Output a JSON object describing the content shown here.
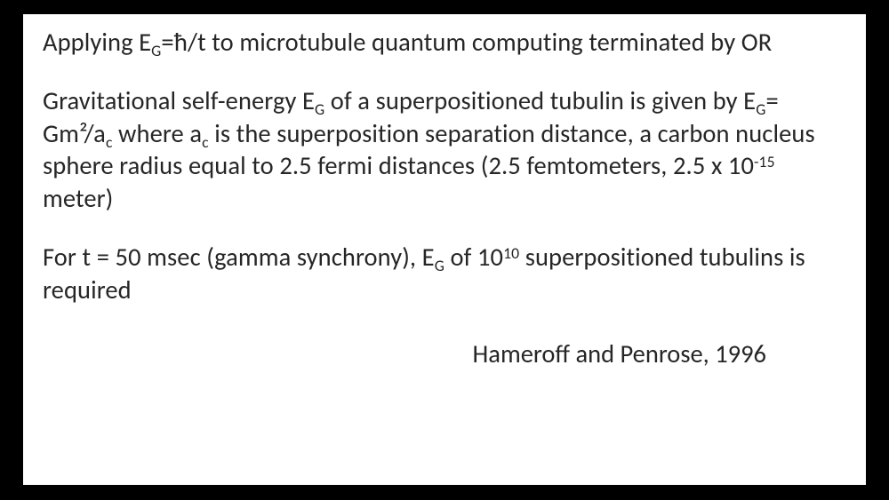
{
  "slide": {
    "background_color": "#ffffff",
    "page_background": "#000000",
    "text_color": "#262626",
    "font_family": "Calibri",
    "body_fontsize_pt": 22,
    "paragraphs": {
      "p1": "Applying E<sub>G</sub>=ħ/t to microtubule quantum computing terminated by OR",
      "p2": "Gravitational self-energy E<sub>G</sub> of a superpositioned tubulin is given by E<sub>G</sub>= Gm²/a<sub>c</sub> where a<sub>c</sub> is the superposition separation distance, a carbon nucleus sphere radius equal to 2.5 fermi distances (2.5 femtometers, 2.5 x 10<sup>-15</sup> meter)",
      "p3": "For t = 50 msec (gamma synchrony), E<sub>G</sub> of 10<sup>10</sup> superpositioned  tubulins is required"
    },
    "citation": "Hameroff and Penrose, 1996"
  }
}
